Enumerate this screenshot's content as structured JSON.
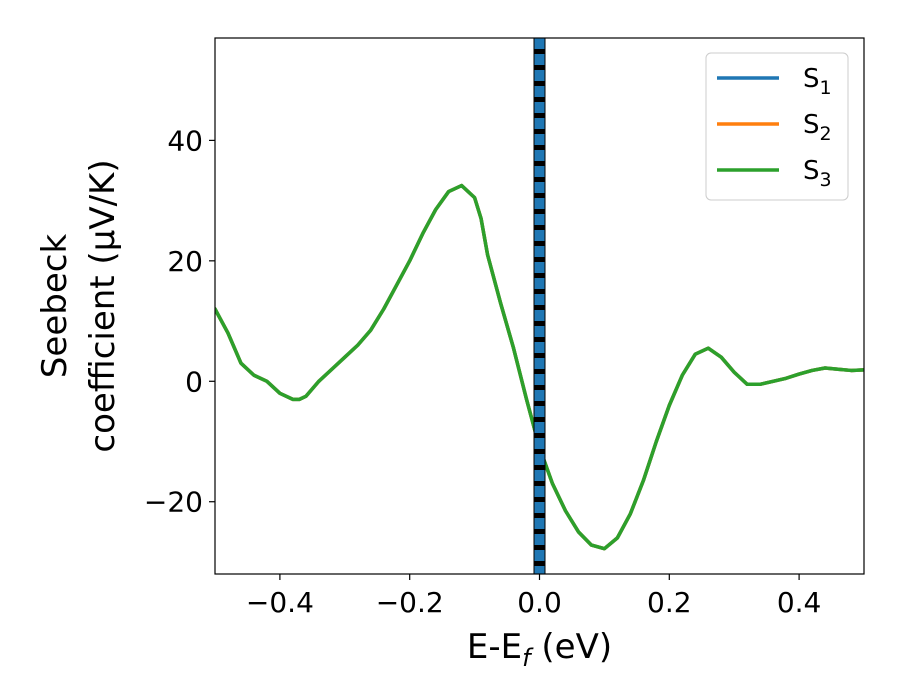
{
  "chart_data": {
    "type": "line",
    "title": "",
    "xlabel": {
      "main": "E-E",
      "sub": "f",
      "unit": " (eV)"
    },
    "ylabel": {
      "line1": "Seebeck",
      "line2": "coefficient  (μV/K)"
    },
    "xlim": [
      -0.5,
      0.5
    ],
    "ylim": [
      -32,
      57
    ],
    "xticks": [
      -0.4,
      -0.2,
      0.0,
      0.2,
      0.4
    ],
    "xtick_labels": [
      "−0.4",
      "−0.2",
      "0.0",
      "0.2",
      "0.4"
    ],
    "yticks": [
      -20,
      0,
      20,
      40
    ],
    "ytick_labels": [
      "−20",
      "0",
      "20",
      "40"
    ],
    "grid": false,
    "legend": {
      "placement": "top-right",
      "entries": [
        {
          "base": "S",
          "sub": "1",
          "color": "#1f77b4"
        },
        {
          "base": "S",
          "sub": "2",
          "color": "#ff7f0e"
        },
        {
          "base": "S",
          "sub": "3",
          "color": "#2ca02c"
        }
      ]
    },
    "vline": {
      "x": 0.0,
      "style": "black line with blue dashed overlay"
    },
    "x": [
      -0.5,
      -0.48,
      -0.46,
      -0.44,
      -0.42,
      -0.4,
      -0.38,
      -0.37,
      -0.36,
      -0.34,
      -0.32,
      -0.3,
      -0.28,
      -0.26,
      -0.24,
      -0.22,
      -0.2,
      -0.18,
      -0.16,
      -0.14,
      -0.12,
      -0.1,
      -0.09,
      -0.08,
      -0.06,
      -0.04,
      -0.02,
      0.0,
      0.02,
      0.04,
      0.06,
      0.08,
      0.1,
      0.12,
      0.14,
      0.16,
      0.18,
      0.2,
      0.22,
      0.24,
      0.26,
      0.28,
      0.3,
      0.32,
      0.34,
      0.36,
      0.38,
      0.4,
      0.42,
      0.44,
      0.46,
      0.48,
      0.5
    ],
    "series": [
      {
        "name": "S1",
        "color": "#1f77b4",
        "values": [
          12,
          8,
          3,
          1,
          0,
          -2,
          -3,
          -3,
          -2.5,
          0,
          2,
          4,
          6,
          8.5,
          12,
          16,
          20,
          24.5,
          28.5,
          31.5,
          32.5,
          30.5,
          27,
          21,
          13,
          5.5,
          -3,
          -11,
          -17,
          -21.5,
          -25,
          -27.2,
          -27.8,
          -26,
          -22,
          -16.5,
          -10,
          -4,
          1,
          4.5,
          5.5,
          4,
          1.5,
          -0.5,
          -0.5,
          0,
          0.5,
          1.2,
          1.8,
          2.2,
          2,
          1.8,
          1.9
        ]
      },
      {
        "name": "S2",
        "color": "#ff7f0e",
        "values": [
          12,
          8,
          3,
          1,
          0,
          -2,
          -3,
          -3,
          -2.5,
          0,
          2,
          4,
          6,
          8.5,
          12,
          16,
          20,
          24.5,
          28.5,
          31.5,
          32.5,
          30.5,
          27,
          21,
          13,
          5.5,
          -3,
          -11,
          -17,
          -21.5,
          -25,
          -27.2,
          -27.8,
          -26,
          -22,
          -16.5,
          -10,
          -4,
          1,
          4.5,
          5.5,
          4,
          1.5,
          -0.5,
          -0.5,
          0,
          0.5,
          1.2,
          1.8,
          2.2,
          2,
          1.8,
          1.9
        ]
      },
      {
        "name": "S3",
        "color": "#2ca02c",
        "values": [
          12,
          8,
          3,
          1,
          0,
          -2,
          -3,
          -3,
          -2.5,
          0,
          2,
          4,
          6,
          8.5,
          12,
          16,
          20,
          24.5,
          28.5,
          31.5,
          32.5,
          30.5,
          27,
          21,
          13,
          5.5,
          -3,
          -11,
          -17,
          -21.5,
          -25,
          -27.2,
          -27.8,
          -26,
          -22,
          -16.5,
          -10,
          -4,
          1,
          4.5,
          5.5,
          4,
          1.5,
          -0.5,
          -0.5,
          0,
          0.5,
          1.2,
          1.8,
          2.2,
          2,
          1.8,
          1.9
        ]
      }
    ]
  }
}
